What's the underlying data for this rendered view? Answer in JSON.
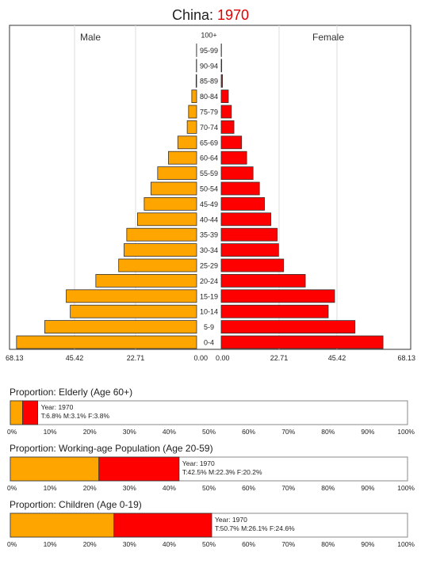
{
  "title": {
    "country": "China",
    "separator": ": ",
    "year": "1970"
  },
  "colors": {
    "male": "#ffa500",
    "female": "#ff0000",
    "border": "#333333",
    "grid": "#dddddd"
  },
  "chart_data": [
    {
      "type": "bar",
      "orientation": "horizontal",
      "subtype": "population-pyramid",
      "series": [
        {
          "name": "Male",
          "values": [
            67.0,
            56.5,
            47.0,
            48.5,
            37.5,
            29.0,
            27.0,
            26.0,
            22.0,
            19.5,
            17.0,
            14.5,
            10.5,
            7.0,
            3.5,
            3.0,
            1.8,
            0.2,
            0.1,
            0.05,
            0
          ]
        },
        {
          "name": "Female",
          "values": [
            63.5,
            52.5,
            42.0,
            44.5,
            33.0,
            24.5,
            22.5,
            22.0,
            19.5,
            17.0,
            15.0,
            12.5,
            10.0,
            8.0,
            5.0,
            4.0,
            2.8,
            0.5,
            0.2,
            0.1,
            0
          ]
        }
      ],
      "categories": [
        "0-4",
        "5-9",
        "10-14",
        "15-19",
        "20-24",
        "25-29",
        "30-34",
        "35-39",
        "40-44",
        "45-49",
        "50-54",
        "55-59",
        "60-64",
        "65-69",
        "70-74",
        "75-79",
        "80-84",
        "85-89",
        "90-94",
        "95-99",
        "100+"
      ],
      "xlim": [
        0,
        68.13
      ],
      "left_ticks": [
        "68.13",
        "45.42",
        "22.71",
        "0.00"
      ],
      "right_ticks": [
        "0.00",
        "22.71",
        "45.42",
        "68.13"
      ],
      "left_tick_values": [
        68.13,
        45.42,
        22.71,
        0
      ],
      "right_tick_values": [
        0,
        22.71,
        45.42,
        68.13
      ],
      "grid": true
    },
    {
      "type": "bar",
      "orientation": "horizontal",
      "subtype": "stacked-proportion",
      "title": "Proportion: Elderly (Age 60+)",
      "male": 3.1,
      "female": 3.8,
      "label_year": "Year: 1970",
      "label_values": "T:6.8%  M:3.1%  F:3.8%",
      "ticks": [
        "0%",
        "10%",
        "20%",
        "30%",
        "40%",
        "50%",
        "60%",
        "70%",
        "80%",
        "90%",
        "100%"
      ],
      "xlim": [
        0,
        100
      ]
    },
    {
      "type": "bar",
      "orientation": "horizontal",
      "subtype": "stacked-proportion",
      "title": "Proportion: Working-age Population (Age 20-59)",
      "male": 22.3,
      "female": 20.2,
      "label_year": "Year: 1970",
      "label_values": "T:42.5%  M:22.3%  F:20.2%",
      "ticks": [
        "0%",
        "10%",
        "20%",
        "30%",
        "40%",
        "50%",
        "60%",
        "70%",
        "80%",
        "90%",
        "100%"
      ],
      "xlim": [
        0,
        100
      ]
    },
    {
      "type": "bar",
      "orientation": "horizontal",
      "subtype": "stacked-proportion",
      "title": "Proportion: Children (Age 0-19)",
      "male": 26.1,
      "female": 24.6,
      "label_year": "Year: 1970",
      "label_values": "T:50.7%  M:26.1%  F:24.6%",
      "ticks": [
        "0%",
        "10%",
        "20%",
        "30%",
        "40%",
        "50%",
        "60%",
        "70%",
        "80%",
        "90%",
        "100%"
      ],
      "xlim": [
        0,
        100
      ]
    }
  ]
}
